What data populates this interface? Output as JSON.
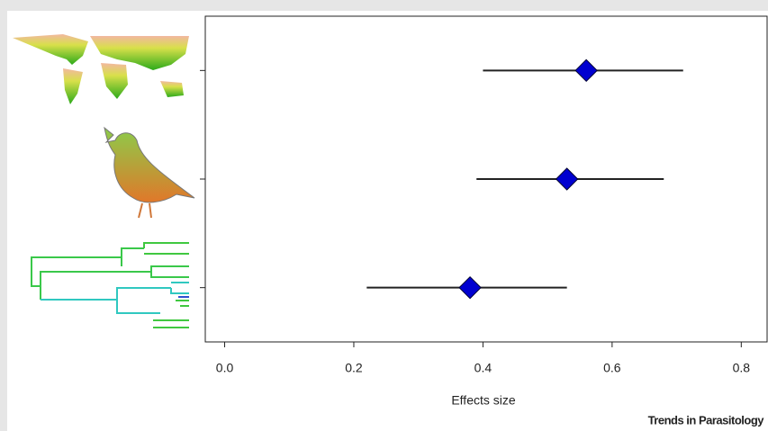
{
  "chart_data": {
    "type": "forest",
    "xlabel": "Effects size",
    "footer": "Trends in Parasitology",
    "categories": [
      null,
      null,
      null
    ],
    "values": [
      0.56,
      0.53,
      0.38
    ],
    "lower": [
      0.4,
      0.39,
      0.22
    ],
    "upper": [
      0.71,
      0.68,
      0.53
    ],
    "color": "#0000d0",
    "xlim": [
      -0.03,
      0.84
    ],
    "xticks": [
      {
        "value": 0,
        "label": "0.0"
      },
      0.2,
      0.4,
      0.6,
      0.8
    ]
  }
}
